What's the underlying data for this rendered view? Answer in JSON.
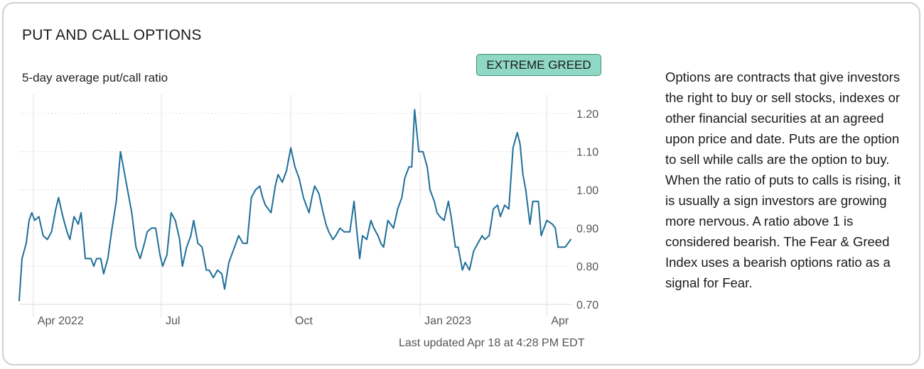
{
  "card": {
    "title": "PUT AND CALL OPTIONS",
    "subtitle": "5-day average put/call ratio",
    "badge": "EXTREME GREED",
    "badge_color": "#8fd8c3",
    "last_updated": "Last updated Apr 18 at 4:28 PM EDT",
    "description": "Options are contracts that give investors the right to buy or sell stocks, indexes or other financial securities at an agreed upon price and date. Puts are the option to sell while calls are the option to buy. When the ratio of puts to calls is rising, it is usually a sign investors are growing more nervous. A ratio above 1 is considered bearish. The Fear & Greed Index uses a bearish options ratio as a signal for Fear."
  },
  "chart_data": {
    "type": "line",
    "line_color": "#1f6f99",
    "grid": true,
    "ylim": [
      0.7,
      1.25
    ],
    "y_ticks": [
      "1.20",
      "1.10",
      "1.00",
      "0.90",
      "0.80",
      "0.70"
    ],
    "y_tick_values": [
      1.2,
      1.1,
      1.0,
      0.9,
      0.8,
      0.7
    ],
    "x_range": [
      "2022-03-22",
      "2023-04-18"
    ],
    "x_ticks": [
      "Apr 2022",
      "Jul",
      "Oct",
      "Jan 2023",
      "Apr"
    ],
    "x_tick_dates": [
      "2022-04-01",
      "2022-07-01",
      "2022-10-01",
      "2023-01-01",
      "2023-04-01"
    ],
    "series": [
      {
        "points": [
          [
            "2022-03-22",
            0.71
          ],
          [
            "2022-03-24",
            0.82
          ],
          [
            "2022-03-27",
            0.86
          ],
          [
            "2022-03-29",
            0.92
          ],
          [
            "2022-03-31",
            0.94
          ],
          [
            "2022-04-02",
            0.92
          ],
          [
            "2022-04-05",
            0.93
          ],
          [
            "2022-04-08",
            0.88
          ],
          [
            "2022-04-11",
            0.87
          ],
          [
            "2022-04-14",
            0.89
          ],
          [
            "2022-04-17",
            0.95
          ],
          [
            "2022-04-19",
            0.98
          ],
          [
            "2022-04-22",
            0.93
          ],
          [
            "2022-04-25",
            0.89
          ],
          [
            "2022-04-27",
            0.87
          ],
          [
            "2022-04-30",
            0.93
          ],
          [
            "2022-05-03",
            0.91
          ],
          [
            "2022-05-05",
            0.94
          ],
          [
            "2022-05-08",
            0.82
          ],
          [
            "2022-05-10",
            0.82
          ],
          [
            "2022-05-12",
            0.82
          ],
          [
            "2022-05-14",
            0.8
          ],
          [
            "2022-05-16",
            0.82
          ],
          [
            "2022-05-19",
            0.82
          ],
          [
            "2022-05-21",
            0.78
          ],
          [
            "2022-05-24",
            0.82
          ],
          [
            "2022-05-27",
            0.9
          ],
          [
            "2022-05-30",
            0.97
          ],
          [
            "2022-06-02",
            1.1
          ],
          [
            "2022-06-05",
            1.04
          ],
          [
            "2022-06-08",
            0.98
          ],
          [
            "2022-06-10",
            0.94
          ],
          [
            "2022-06-13",
            0.85
          ],
          [
            "2022-06-16",
            0.82
          ],
          [
            "2022-06-19",
            0.86
          ],
          [
            "2022-06-21",
            0.89
          ],
          [
            "2022-06-24",
            0.9
          ],
          [
            "2022-06-27",
            0.9
          ],
          [
            "2022-06-30",
            0.83
          ],
          [
            "2022-07-02",
            0.8
          ],
          [
            "2022-07-05",
            0.83
          ],
          [
            "2022-07-08",
            0.94
          ],
          [
            "2022-07-11",
            0.92
          ],
          [
            "2022-07-14",
            0.87
          ],
          [
            "2022-07-16",
            0.8
          ],
          [
            "2022-07-19",
            0.85
          ],
          [
            "2022-07-22",
            0.88
          ],
          [
            "2022-07-24",
            0.92
          ],
          [
            "2022-07-27",
            0.86
          ],
          [
            "2022-07-30",
            0.85
          ],
          [
            "2022-08-02",
            0.79
          ],
          [
            "2022-08-04",
            0.79
          ],
          [
            "2022-08-07",
            0.77
          ],
          [
            "2022-08-10",
            0.79
          ],
          [
            "2022-08-13",
            0.78
          ],
          [
            "2022-08-15",
            0.74
          ],
          [
            "2022-08-18",
            0.81
          ],
          [
            "2022-08-22",
            0.85
          ],
          [
            "2022-08-25",
            0.88
          ],
          [
            "2022-08-28",
            0.86
          ],
          [
            "2022-08-31",
            0.86
          ],
          [
            "2022-09-03",
            0.98
          ],
          [
            "2022-09-06",
            1.0
          ],
          [
            "2022-09-09",
            1.01
          ],
          [
            "2022-09-11",
            0.98
          ],
          [
            "2022-09-13",
            0.96
          ],
          [
            "2022-09-17",
            0.94
          ],
          [
            "2022-09-20",
            1.01
          ],
          [
            "2022-09-22",
            1.04
          ],
          [
            "2022-09-25",
            1.02
          ],
          [
            "2022-09-28",
            1.05
          ],
          [
            "2022-10-01",
            1.11
          ],
          [
            "2022-10-04",
            1.06
          ],
          [
            "2022-10-07",
            1.03
          ],
          [
            "2022-10-10",
            0.98
          ],
          [
            "2022-10-12",
            0.96
          ],
          [
            "2022-10-14",
            0.94
          ],
          [
            "2022-10-16",
            0.98
          ],
          [
            "2022-10-18",
            1.01
          ],
          [
            "2022-10-21",
            0.99
          ],
          [
            "2022-10-24",
            0.94
          ],
          [
            "2022-10-26",
            0.91
          ],
          [
            "2022-10-28",
            0.89
          ],
          [
            "2022-10-31",
            0.87
          ],
          [
            "2022-11-02",
            0.88
          ],
          [
            "2022-11-05",
            0.9
          ],
          [
            "2022-11-08",
            0.89
          ],
          [
            "2022-11-12",
            0.89
          ],
          [
            "2022-11-15",
            0.97
          ],
          [
            "2022-11-17",
            0.89
          ],
          [
            "2022-11-19",
            0.82
          ],
          [
            "2022-11-21",
            0.88
          ],
          [
            "2022-11-24",
            0.87
          ],
          [
            "2022-11-27",
            0.92
          ],
          [
            "2022-11-29",
            0.9
          ],
          [
            "2022-12-02",
            0.88
          ],
          [
            "2022-12-04",
            0.86
          ],
          [
            "2022-12-06",
            0.85
          ],
          [
            "2022-12-09",
            0.92
          ],
          [
            "2022-12-13",
            0.9
          ],
          [
            "2022-12-16",
            0.95
          ],
          [
            "2022-12-19",
            0.98
          ],
          [
            "2022-12-21",
            1.03
          ],
          [
            "2022-12-24",
            1.06
          ],
          [
            "2022-12-26",
            1.06
          ],
          [
            "2022-12-28",
            1.21
          ],
          [
            "2022-12-31",
            1.1
          ],
          [
            "2023-01-03",
            1.1
          ],
          [
            "2023-01-06",
            1.06
          ],
          [
            "2023-01-08",
            1.0
          ],
          [
            "2023-01-11",
            0.97
          ],
          [
            "2023-01-13",
            0.94
          ],
          [
            "2023-01-15",
            0.93
          ],
          [
            "2023-01-18",
            0.92
          ],
          [
            "2023-01-21",
            0.97
          ],
          [
            "2023-01-23",
            0.93
          ],
          [
            "2023-01-26",
            0.85
          ],
          [
            "2023-01-28",
            0.85
          ],
          [
            "2023-01-31",
            0.79
          ],
          [
            "2023-02-02",
            0.81
          ],
          [
            "2023-02-05",
            0.79
          ],
          [
            "2023-02-08",
            0.84
          ],
          [
            "2023-02-11",
            0.86
          ],
          [
            "2023-02-14",
            0.88
          ],
          [
            "2023-02-16",
            0.87
          ],
          [
            "2023-02-19",
            0.88
          ],
          [
            "2023-02-22",
            0.95
          ],
          [
            "2023-02-25",
            0.96
          ],
          [
            "2023-02-27",
            0.93
          ],
          [
            "2023-03-02",
            0.96
          ],
          [
            "2023-03-05",
            0.95
          ],
          [
            "2023-03-08",
            1.11
          ],
          [
            "2023-03-11",
            1.15
          ],
          [
            "2023-03-13",
            1.12
          ],
          [
            "2023-03-15",
            1.04
          ],
          [
            "2023-03-17",
            1.0
          ],
          [
            "2023-03-20",
            0.91
          ],
          [
            "2023-03-22",
            0.97
          ],
          [
            "2023-03-26",
            0.97
          ],
          [
            "2023-03-28",
            0.88
          ],
          [
            "2023-04-01",
            0.92
          ],
          [
            "2023-04-05",
            0.91
          ],
          [
            "2023-04-07",
            0.9
          ],
          [
            "2023-04-09",
            0.85
          ],
          [
            "2023-04-12",
            0.85
          ],
          [
            "2023-04-14",
            0.85
          ],
          [
            "2023-04-18",
            0.87
          ]
        ]
      }
    ]
  }
}
